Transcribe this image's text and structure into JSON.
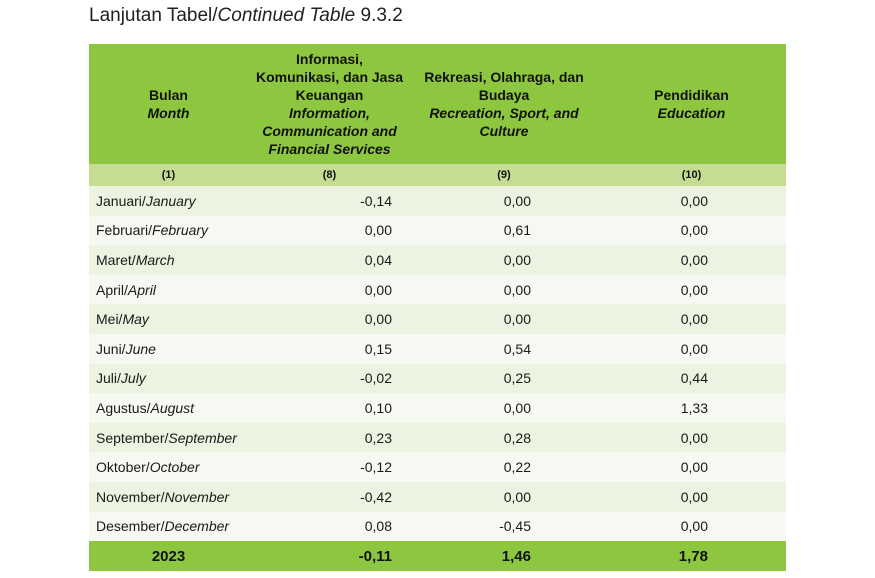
{
  "caption": {
    "prefix": "Lanjutan Tabel/",
    "italic": "Continued Table",
    "suffix": " 9.3.2"
  },
  "header": {
    "month": {
      "id": "Bulan",
      "en": "Month"
    },
    "col8": {
      "id": "Informasi, Komunikasi, dan Jasa Keuangan",
      "en": "Information, Communication and Financial Services"
    },
    "col9": {
      "id": "Rekreasi, Olahraga, dan Budaya",
      "en": "Recreation, Sport, and Culture"
    },
    "col10": {
      "id": "Pendidikan",
      "en": "Education"
    }
  },
  "column_numbers": [
    "(1)",
    "(8)",
    "(9)",
    "(10)"
  ],
  "rows": [
    {
      "month_id": "Januari/",
      "month_en": "January",
      "values": [
        "-0,14",
        "0,00",
        "0,00"
      ]
    },
    {
      "month_id": "Februari/",
      "month_en": "February",
      "values": [
        "0,00",
        "0,61",
        "0,00"
      ]
    },
    {
      "month_id": "Maret/",
      "month_en": "March",
      "values": [
        "0,04",
        "0,00",
        "0,00"
      ]
    },
    {
      "month_id": "April/",
      "month_en": "April",
      "values": [
        "0,00",
        "0,00",
        "0,00"
      ]
    },
    {
      "month_id": "Mei/",
      "month_en": "May",
      "values": [
        "0,00",
        "0,00",
        "0,00"
      ]
    },
    {
      "month_id": "Juni/",
      "month_en": "June",
      "values": [
        "0,15",
        "0,54",
        "0,00"
      ]
    },
    {
      "month_id": "Juli/",
      "month_en": "July",
      "values": [
        "-0,02",
        "0,25",
        "0,44"
      ]
    },
    {
      "month_id": "Agustus/",
      "month_en": "August",
      "values": [
        "0,10",
        "0,00",
        "1,33"
      ]
    },
    {
      "month_id": "September/",
      "month_en": "September",
      "values": [
        "0,23",
        "0,28",
        "0,00"
      ]
    },
    {
      "month_id": "Oktober/",
      "month_en": "October",
      "values": [
        "-0,12",
        "0,22",
        "0,00"
      ]
    },
    {
      "month_id": "November/",
      "month_en": "November",
      "values": [
        "-0,42",
        "0,00",
        "0,00"
      ]
    },
    {
      "month_id": "Desember/",
      "month_en": "December",
      "values": [
        "0,08",
        "-0,45",
        "0,00"
      ]
    }
  ],
  "total": {
    "label": "2023",
    "values": [
      "-0,11",
      "1,46",
      "1,78"
    ]
  },
  "colors": {
    "header_green": "#8dc63f",
    "number_row_green": "#c5dd93",
    "row_light": "#ecf3e0",
    "row_lighter": "#f6f9f1"
  }
}
